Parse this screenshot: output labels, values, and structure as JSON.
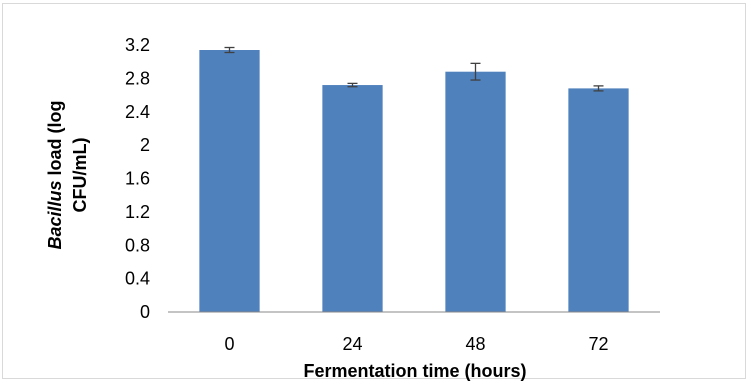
{
  "chart_data": {
    "type": "bar",
    "categories": [
      "0",
      "24",
      "48",
      "72"
    ],
    "values": [
      3.14,
      2.72,
      2.88,
      2.68
    ],
    "errors": [
      0.03,
      0.02,
      0.1,
      0.03
    ],
    "xlabel": "Fermentation time (hours)",
    "ylabel": {
      "italic": "Bacillus",
      "line1_rest": " load (log",
      "line2": "CFU/mL)"
    },
    "ylim": [
      0,
      3.2
    ],
    "yticks": [
      "0",
      "0.4",
      "0.8",
      "1.2",
      "1.6",
      "2",
      "2.4",
      "2.8",
      "3.2"
    ],
    "bar_color": "#4f81bd",
    "grid": false,
    "legend": "none"
  }
}
